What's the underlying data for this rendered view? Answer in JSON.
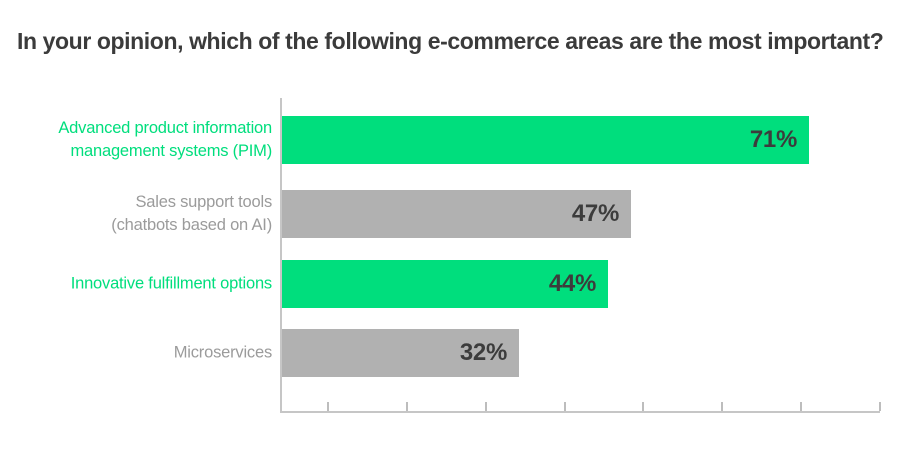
{
  "header": {
    "title": "In your opinion, which of the following e-commerce areas are the most important?"
  },
  "chart_data": {
    "type": "bar",
    "orientation": "horizontal",
    "title": "In your opinion, which of the following e-commerce areas are the most important?",
    "categories": [
      "Advanced product information management systems (PIM)",
      "Sales support tools (chatbots based on AI)",
      "Innovative fulfillment options",
      "Microservices"
    ],
    "values": [
      71,
      47,
      44,
      32
    ],
    "unit": "%",
    "xlabel": "",
    "ylabel": "",
    "xlim": [
      0,
      80
    ],
    "grid": false,
    "legend": false,
    "axis_tick_count": 8,
    "bars": [
      {
        "label_lines": [
          "Advanced product information",
          "management systems (PIM)"
        ],
        "value": 71,
        "value_label": "71%",
        "emphasis": "highlight"
      },
      {
        "label_lines": [
          "Sales support tools",
          "(chatbots based on AI)"
        ],
        "value": 47,
        "value_label": "47%",
        "emphasis": "muted"
      },
      {
        "label_lines": [
          "Innovative fulfillment options"
        ],
        "value": 44,
        "value_label": "44%",
        "emphasis": "highlight"
      },
      {
        "label_lines": [
          "Microservices"
        ],
        "value": 32,
        "value_label": "32%",
        "emphasis": "muted"
      }
    ],
    "colors": {
      "highlight_bar": "#00DE7D",
      "muted_bar": "#B1B1B1",
      "highlight_label": "#00DE7D",
      "muted_label": "#9B9B9B",
      "value_text": "#3C3C3C",
      "title_text": "#3B3B3B",
      "axis_line": "#C6C6C6",
      "tick_mark": "#BDBDBD"
    }
  }
}
